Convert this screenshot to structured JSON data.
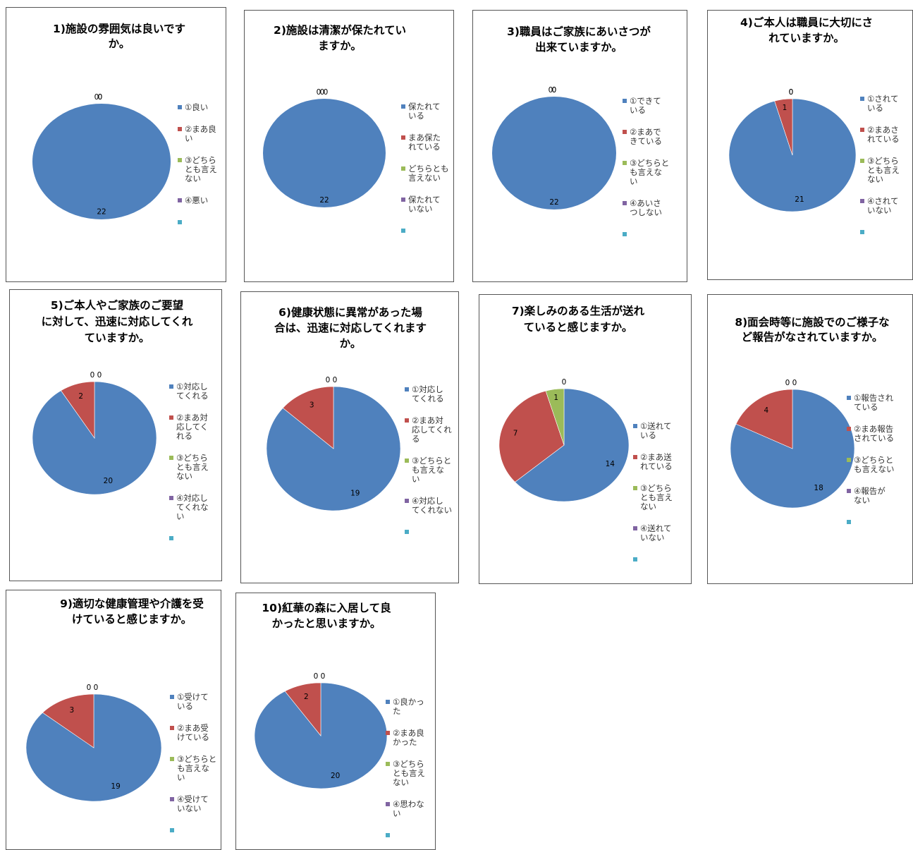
{
  "legend_colors": [
    "#4F81BD",
    "#C0504D",
    "#9BBB59",
    "#8064A2",
    "#4BACC6"
  ],
  "chart_data": [
    {
      "type": "pie",
      "title": "1)施設の雰囲気は良いですか。",
      "title_lines": [
        "1)施設の雰囲気は良いです",
        "か。"
      ],
      "categories": [
        "①良い",
        "②まあ良い",
        "③どちらとも言えない",
        "④悪い",
        ""
      ],
      "legend_lines": [
        [
          "①良い"
        ],
        [
          "②まあ良",
          "い"
        ],
        [
          "③どちら",
          "とも言え",
          "ない"
        ],
        [
          "④悪い"
        ],
        [
          ""
        ]
      ],
      "values": [
        22,
        0,
        0,
        0,
        0
      ],
      "data_labels": [
        "22",
        "0",
        "0",
        "0",
        ""
      ]
    },
    {
      "type": "pie",
      "title": "2)施設は清潔が保たれていますか。",
      "title_lines": [
        "2)施設は清潔が保たれてい",
        "ますか。"
      ],
      "categories": [
        "保たれている",
        "まあ保たれている",
        "どちらとも言えない",
        "保たれていない",
        ""
      ],
      "legend_lines": [
        [
          "保たれて",
          "いる"
        ],
        [
          "まあ保た",
          "れている"
        ],
        [
          "どちらとも",
          "言えない"
        ],
        [
          "保たれて",
          "いない"
        ],
        [
          ""
        ]
      ],
      "values": [
        22,
        0,
        0,
        0,
        0
      ],
      "data_labels": [
        "22",
        "0",
        "0",
        "0",
        ""
      ]
    },
    {
      "type": "pie",
      "title": "3)職員はご家族にあいさつが出来ていますか。",
      "title_lines": [
        "3)職員はご家族にあいさつが",
        "出来ていますか。"
      ],
      "categories": [
        "①できている",
        "②まあできている",
        "③どちらとも言えない",
        "④あいさつしない",
        ""
      ],
      "legend_lines": [
        [
          "①できて",
          "いる"
        ],
        [
          "②まあで",
          "きている"
        ],
        [
          "③どちらと",
          "も言えな",
          "い"
        ],
        [
          "④あいさ",
          "つしない"
        ],
        [
          ""
        ]
      ],
      "values": [
        22,
        0,
        0,
        0,
        0
      ],
      "data_labels": [
        "22",
        "0",
        "0",
        "0",
        ""
      ]
    },
    {
      "type": "pie",
      "title": "4)ご本人は職員に大切にされていますか。",
      "title_lines": [
        "4)ご本人は職員に大切にさ",
        "れていますか。"
      ],
      "categories": [
        "①されている",
        "②まあされている",
        "③どちらとも言えない",
        "④されていない",
        ""
      ],
      "legend_lines": [
        [
          "①されて",
          "いる"
        ],
        [
          "②まあさ",
          "れている"
        ],
        [
          "③どちら",
          "とも言え",
          "ない"
        ],
        [
          "④されて",
          "いない"
        ],
        [
          ""
        ]
      ],
      "values": [
        21,
        1,
        0,
        0,
        0
      ],
      "data_labels": [
        "21",
        "1",
        "0",
        "0",
        ""
      ]
    },
    {
      "type": "pie",
      "title": "5)ご本人やご家族のご要望に対して、迅速に対応してくれていますか。",
      "title_lines": [
        "5)ご本人やご家族のご要望",
        "に対して、迅速に対応してくれ",
        "ていますか。"
      ],
      "categories": [
        "①対応してくれる",
        "②まあ対応してくれる",
        "③どちらとも言えない",
        "④対応してくれない",
        ""
      ],
      "legend_lines": [
        [
          "①対応し",
          "てくれる"
        ],
        [
          "②まあ対",
          "応してく",
          "れる"
        ],
        [
          "③どちら",
          "とも言え",
          "ない"
        ],
        [
          "④対応し",
          "てくれな",
          "い"
        ],
        [
          ""
        ]
      ],
      "values": [
        20,
        2,
        0,
        0,
        0
      ],
      "data_labels": [
        "20",
        "2",
        "0",
        "0",
        ""
      ]
    },
    {
      "type": "pie",
      "title": "6)健康状態に異常があった場合は、迅速に対応してくれますか。",
      "title_lines": [
        "6)健康状態に異常があった場",
        "合は、迅速に対応してくれます",
        "か。"
      ],
      "categories": [
        "①対応してくれる",
        "②まあ対応してくれる",
        "③どちらとも言えない",
        "④対応してくれない",
        ""
      ],
      "legend_lines": [
        [
          "①対応し",
          "てくれる"
        ],
        [
          "②まあ対",
          "応してくれ",
          "る"
        ],
        [
          "③どちらと",
          "も言えな",
          "い"
        ],
        [
          "④対応し",
          "てくれない"
        ],
        [
          ""
        ]
      ],
      "values": [
        19,
        3,
        0,
        0,
        0
      ],
      "data_labels": [
        "19",
        "3",
        "0",
        "0",
        ""
      ]
    },
    {
      "type": "pie",
      "title": "7)楽しみのある生活が送れていると感じますか。",
      "title_lines": [
        "7)楽しみのある生活が送れ",
        "ていると感じますか。"
      ],
      "categories": [
        "①送れている",
        "②まあ送れている",
        "③どちらとも言えない",
        "④送れていない",
        ""
      ],
      "legend_lines": [
        [
          "①送れて",
          "いる"
        ],
        [
          "②まあ送",
          "れている"
        ],
        [
          "③どちら",
          "とも言え",
          "ない"
        ],
        [
          "④送れて",
          "いない"
        ],
        [
          ""
        ]
      ],
      "values": [
        14,
        7,
        1,
        0,
        0
      ],
      "data_labels": [
        "14",
        "7",
        "1",
        "0",
        ""
      ]
    },
    {
      "type": "pie",
      "title": "8)面会時等に施設でのご様子など報告がなされていますか。",
      "title_lines": [
        "8)面会時等に施設でのご様子な",
        "ど報告がなされていますか。"
      ],
      "categories": [
        "①報告されている",
        "②まあ報告されている",
        "③どちらとも言えない",
        "④報告がない",
        ""
      ],
      "legend_lines": [
        [
          "①報告され",
          "ている"
        ],
        [
          "②まあ報告",
          "されている"
        ],
        [
          "③どちらと",
          "も言えない"
        ],
        [
          "④報告が",
          "ない"
        ],
        [
          ""
        ]
      ],
      "values": [
        18,
        4,
        0,
        0,
        0
      ],
      "data_labels": [
        "18",
        "4",
        "0",
        "0",
        ""
      ]
    },
    {
      "type": "pie",
      "title": "9)適切な健康管理や介護を受けていると感じますか。",
      "title_lines": [
        "9)適切な健康管理や介護を受",
        "けていると感じますか。"
      ],
      "categories": [
        "①受けている",
        "②まあ受けている",
        "③どちらとも言えない",
        "④受けていない",
        ""
      ],
      "legend_lines": [
        [
          "①受けて",
          "いる"
        ],
        [
          "②まあ受",
          "けている"
        ],
        [
          "③どちらと",
          "も言えな",
          "い"
        ],
        [
          "④受けて",
          "いない"
        ],
        [
          ""
        ]
      ],
      "values": [
        19,
        3,
        0,
        0,
        0
      ],
      "data_labels": [
        "19",
        "3",
        "0",
        "0",
        ""
      ]
    },
    {
      "type": "pie",
      "title": "10)紅華の森に入居して良かったと思いますか。",
      "title_lines": [
        "10)紅華の森に入居して良",
        "かったと思いますか。"
      ],
      "categories": [
        "①良かった",
        "②まあ良かった",
        "③どちらとも言えない",
        "④思わない",
        ""
      ],
      "legend_lines": [
        [
          "①良かっ",
          "た"
        ],
        [
          "②まあ良",
          "かった"
        ],
        [
          "③どちら",
          "とも言え",
          "ない"
        ],
        [
          "④思わな",
          "い"
        ],
        [
          ""
        ]
      ],
      "values": [
        20,
        2,
        0,
        0,
        0
      ],
      "data_labels": [
        "20",
        "2",
        "0",
        "0",
        ""
      ]
    }
  ]
}
